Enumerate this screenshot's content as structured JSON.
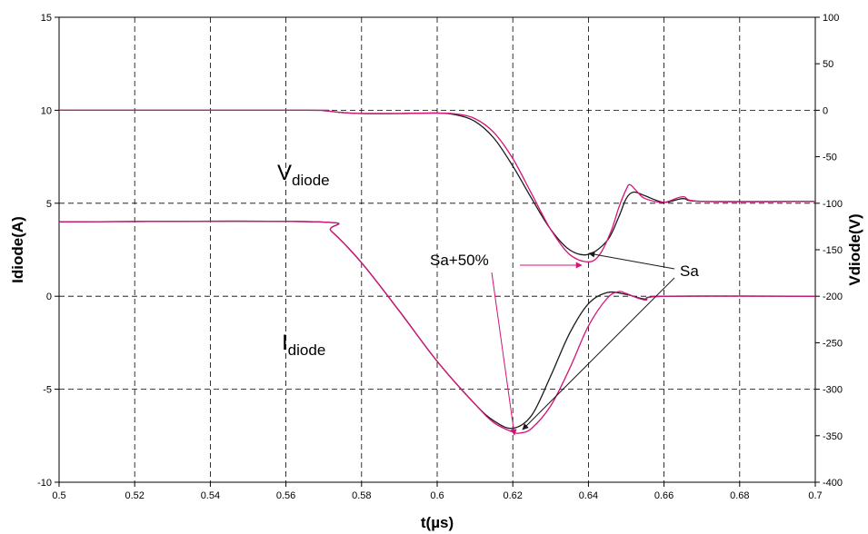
{
  "chart_data": {
    "type": "line",
    "xlabel": "t(µs)",
    "ylabel_left": "Idiode(A)",
    "ylabel_right": "Vdiode(V)",
    "xlim": [
      0.5,
      0.7
    ],
    "ylim_left": [
      -10,
      15
    ],
    "ylim_right": [
      -400,
      100
    ],
    "x_ticks": [
      "0.5",
      "0.52",
      "0.54",
      "0.56",
      "0.58",
      "0.6",
      "0.62",
      "0.64",
      "0.66",
      "0.68",
      "0.7"
    ],
    "y_left_ticks": [
      "-10",
      "-5",
      "0",
      "5",
      "10",
      "15"
    ],
    "y_right_ticks": [
      "-400",
      "-350",
      "-300",
      "-250",
      "-200",
      "-150",
      "-100",
      "-50",
      "0",
      "50",
      "100"
    ],
    "grid": true,
    "colors": {
      "black": "#1a1a1a",
      "magenta": "#d4137a"
    },
    "series": [
      {
        "axis": "right",
        "color": "#1a1a1a",
        "x": [
          0.5,
          0.565,
          0.57,
          0.575,
          0.58,
          0.59,
          0.6,
          0.605,
          0.61,
          0.615,
          0.62,
          0.625,
          0.63,
          0.635,
          0.64,
          0.645,
          0.648,
          0.65,
          0.652,
          0.655,
          0.66,
          0.665,
          0.67,
          0.7
        ],
        "y": [
          0,
          0,
          -0.5,
          -2.5,
          -3.5,
          -3.5,
          -3,
          -5,
          -12,
          -30,
          -60,
          -95,
          -128,
          -150,
          -155,
          -140,
          -115,
          -95,
          -88,
          -92,
          -99,
          -95,
          -98,
          -98
        ]
      },
      {
        "axis": "right",
        "color": "#d4137a",
        "x": [
          0.5,
          0.565,
          0.57,
          0.575,
          0.58,
          0.59,
          0.6,
          0.605,
          0.61,
          0.615,
          0.62,
          0.625,
          0.63,
          0.635,
          0.64,
          0.643,
          0.646,
          0.648,
          0.65,
          0.651,
          0.653,
          0.655,
          0.66,
          0.665,
          0.67,
          0.7
        ],
        "y": [
          0,
          0,
          -0.5,
          -2.5,
          -3.5,
          -3.5,
          -3,
          -4,
          -9,
          -24,
          -52,
          -90,
          -128,
          -155,
          -163,
          -155,
          -130,
          -105,
          -85,
          -80,
          -88,
          -95,
          -99,
          -93,
          -98,
          -98
        ]
      },
      {
        "axis": "left",
        "color": "#1a1a1a",
        "x": [
          0.5,
          0.568,
          0.572,
          0.58,
          0.59,
          0.6,
          0.61,
          0.615,
          0.62,
          0.625,
          0.63,
          0.635,
          0.64,
          0.645,
          0.65,
          0.655,
          0.66,
          0.7
        ],
        "y": [
          4,
          4,
          3.5,
          1.8,
          -0.8,
          -3.5,
          -5.8,
          -6.7,
          -7.1,
          -6.4,
          -4.3,
          -2.0,
          -0.4,
          0.2,
          0.1,
          -0.15,
          0,
          0
        ]
      },
      {
        "axis": "left",
        "color": "#d4137a",
        "x": [
          0.5,
          0.568,
          0.572,
          0.58,
          0.59,
          0.6,
          0.61,
          0.615,
          0.62,
          0.622,
          0.625,
          0.63,
          0.635,
          0.64,
          0.645,
          0.648,
          0.65,
          0.655,
          0.66,
          0.7
        ],
        "y": [
          4,
          4,
          3.5,
          1.8,
          -0.8,
          -3.5,
          -5.8,
          -6.8,
          -7.3,
          -7.35,
          -7.1,
          -5.9,
          -3.9,
          -1.6,
          -0.1,
          0.25,
          0.15,
          -0.2,
          0,
          0
        ]
      }
    ],
    "annotations": [
      {
        "main": "V",
        "sub": "diode"
      },
      {
        "main": "I",
        "sub": "diode"
      },
      {
        "text": "Sa+50%"
      },
      {
        "text": "Sa"
      }
    ]
  }
}
